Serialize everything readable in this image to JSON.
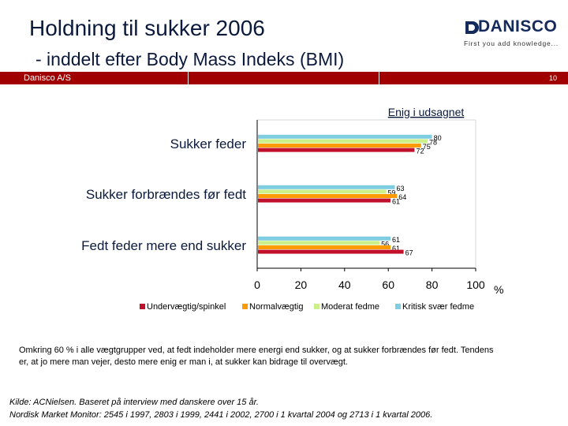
{
  "header": {
    "title": "Holdning til sukker 2006",
    "subtitle": "- inddelt efter Body Mass Indeks (BMI)",
    "logo_text": "DANISCO",
    "logo_tagline": "First you add knowledge...",
    "band_left": "Danisco A/S",
    "page_number": "10",
    "band_color": "#a00000"
  },
  "chart_data": {
    "type": "bar",
    "orientation": "horizontal",
    "title": "Enig i udsagnet",
    "categories": [
      "Sukker feder",
      "Sukker forbrændes før fedt",
      "Fedt feder mere end sukker"
    ],
    "series": [
      {
        "name": "Undervægtig/spinkel",
        "color": "#c0102a",
        "values": [
          72,
          61,
          67
        ]
      },
      {
        "name": "Normalvægtig",
        "color": "#ff9a00",
        "values": [
          75,
          64,
          61
        ]
      },
      {
        "name": "Moderat fedme",
        "color": "#ccf08a",
        "values": [
          78,
          59,
          56
        ]
      },
      {
        "name": "Kritisk svær fedme",
        "color": "#7fcde0",
        "values": [
          80,
          63,
          61
        ]
      }
    ],
    "value_labels": [
      [
        "72",
        "61",
        "67"
      ],
      [
        "75",
        "64",
        "61"
      ],
      [
        "78",
        "59",
        "56"
      ],
      [
        "80",
        "63",
        "61"
      ]
    ],
    "xlim": [
      0,
      100
    ],
    "xticks": [
      "0",
      "20",
      "40",
      "60",
      "80",
      "100"
    ],
    "xunit": "%",
    "legend": "bottom",
    "grid": false
  },
  "footer": {
    "note": "Omkring 60 % i alle vægtgrupper ved, at fedt indeholder mere energi end sukker, og at sukker forbrændes før fedt. Tendens er, at jo mere man vejer, desto mere enig er man i, at sukker kan bidrage til overvægt.",
    "source_line1": "Kilde: ACNielsen. Baseret på interview med danskere over 15 år.",
    "source_line2": "Nordisk Market Monitor: 2545 i 1997, 2803 i 1999, 2441 i 2002, 2700 i 1 kvartal 2004 og 2713 i 1 kvartal 2006."
  }
}
